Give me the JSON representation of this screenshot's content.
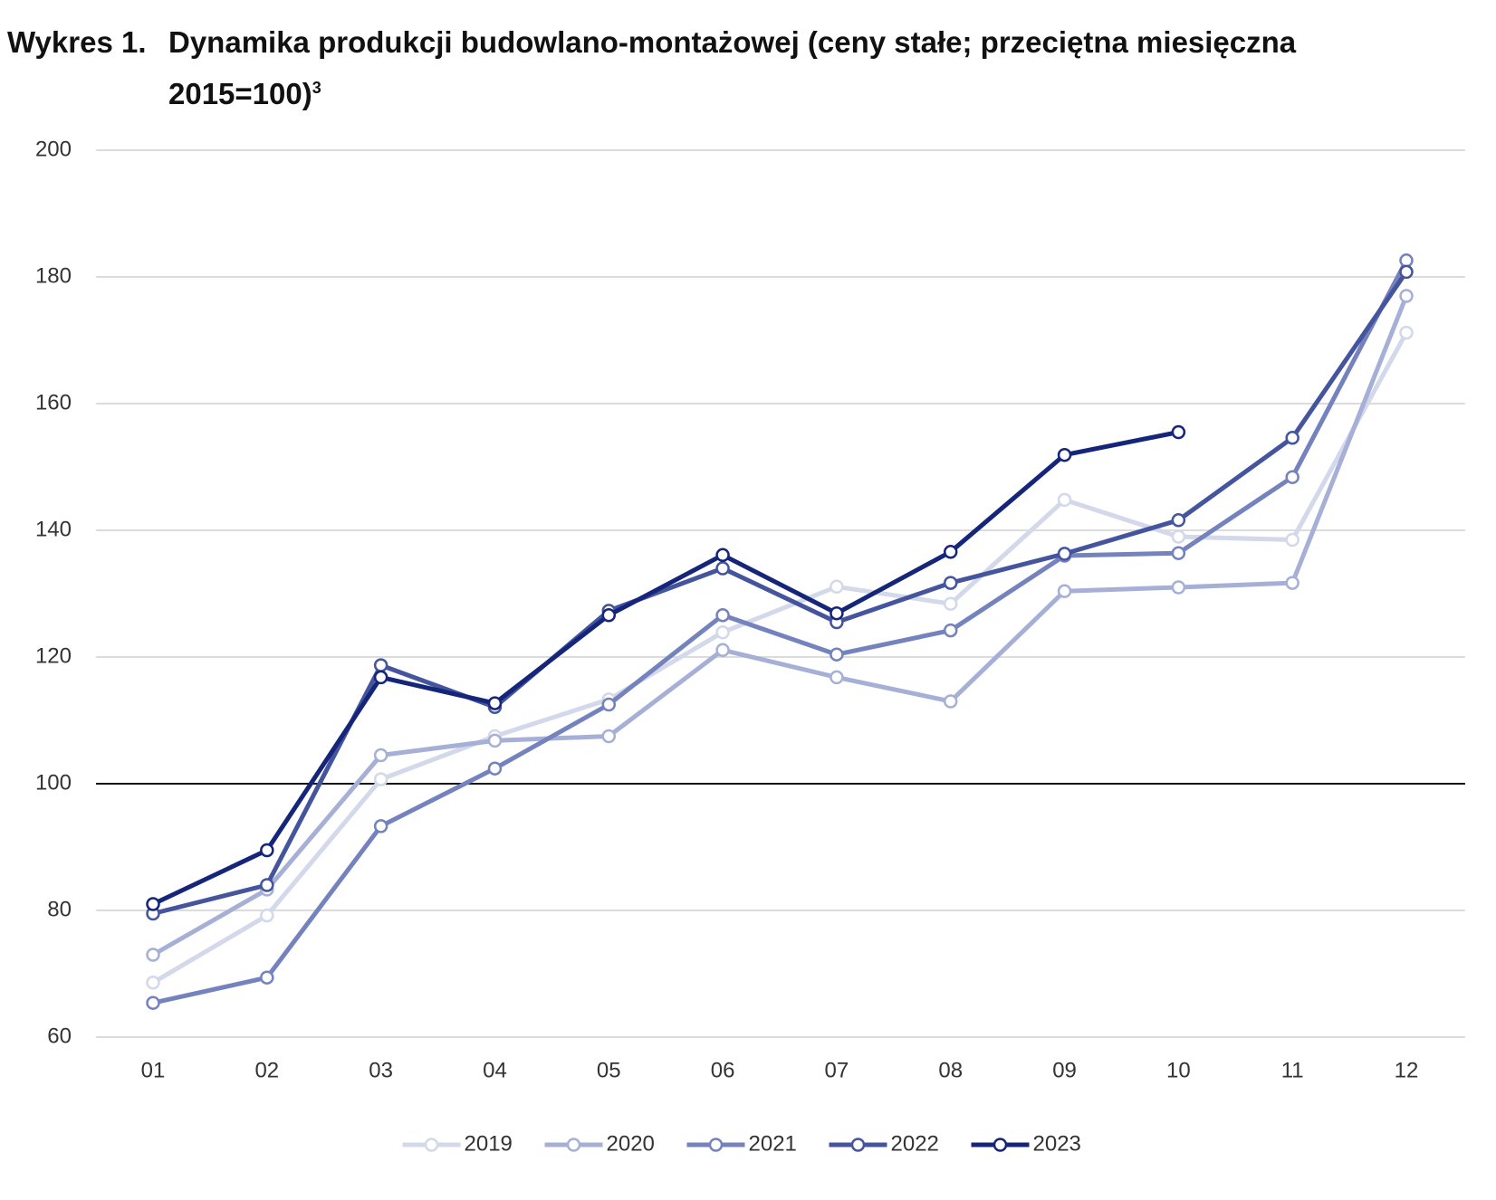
{
  "chart_data": {
    "type": "line",
    "label": "Wykres 1.",
    "title": "Dynamika produkcji budowlano-montażowej (ceny stałe; przeciętna miesięczna 2015=100)",
    "footnote": "3",
    "categories": [
      "01",
      "02",
      "03",
      "04",
      "05",
      "06",
      "07",
      "08",
      "09",
      "10",
      "11",
      "12"
    ],
    "series": [
      {
        "name": "2019",
        "color": "#d3d8ea",
        "values": [
          68.6,
          79.2,
          100.7,
          107.5,
          113.3,
          123.9,
          131.1,
          128.4,
          144.8,
          139.0,
          138.5,
          171.2
        ]
      },
      {
        "name": "2020",
        "color": "#a6b0d6",
        "values": [
          73.0,
          83.3,
          104.5,
          106.8,
          107.5,
          121.1,
          116.8,
          113.0,
          130.4,
          131.0,
          131.7,
          177.0
        ]
      },
      {
        "name": "2021",
        "color": "#7482bd",
        "values": [
          65.4,
          69.4,
          93.3,
          102.4,
          112.5,
          126.6,
          120.4,
          124.2,
          136.0,
          136.4,
          148.4,
          182.6
        ]
      },
      {
        "name": "2022",
        "color": "#44559e",
        "values": [
          79.5,
          84.0,
          118.7,
          112.1,
          127.3,
          134.0,
          125.5,
          131.7,
          136.3,
          141.6,
          154.6,
          180.8
        ]
      },
      {
        "name": "2023",
        "color": "#15267a",
        "values": [
          81.0,
          89.5,
          116.8,
          112.7,
          126.6,
          136.1,
          126.9,
          136.6,
          151.9,
          155.5,
          null,
          null
        ]
      }
    ],
    "ylim": [
      60,
      200
    ],
    "yticks": [
      60,
      80,
      100,
      120,
      140,
      160,
      180,
      200
    ],
    "reference_line": 100,
    "grid": true,
    "legend": "bottom"
  }
}
